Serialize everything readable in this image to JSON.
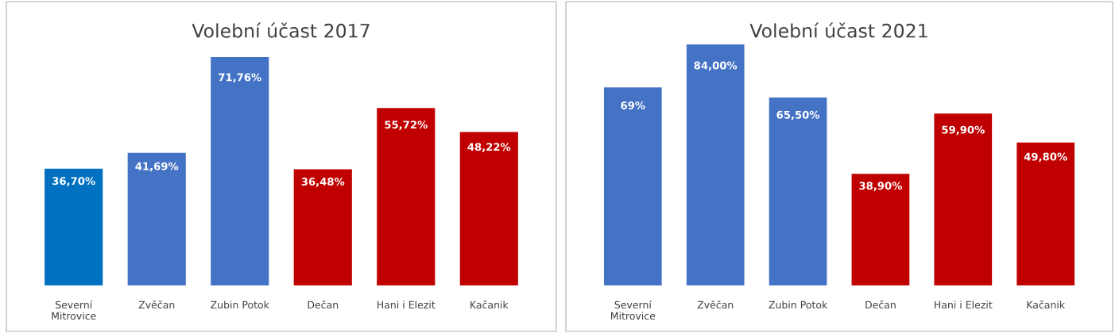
{
  "chart_data": [
    {
      "type": "bar",
      "title": "Volební účast 2017",
      "categories": [
        "Severní\nMitrovice",
        "Zvěčan",
        "Zubin Potok",
        "Dečan",
        "Hani i Elezit",
        "Kačanik"
      ],
      "values": [
        36.7,
        41.69,
        71.76,
        36.48,
        55.72,
        48.22
      ],
      "colors": [
        "#0070c0",
        "#4472c4",
        "#4472c4",
        "#c00000",
        "#c00000",
        "#c00000"
      ],
      "value_labels": [
        "36,70%",
        "41,69%",
        "71,76%",
        "36,48%",
        "55,72%",
        "48,22%"
      ],
      "grid": false,
      "legend": false
    },
    {
      "type": "bar",
      "title": "Volební účast 2021",
      "categories": [
        "Severní\nMitrovice",
        "Zvěčan",
        "Zubin Potok",
        "Dečan",
        "Hani i Elezit",
        "Kačanik"
      ],
      "values": [
        69,
        84.0,
        65.5,
        38.9,
        59.9,
        49.8
      ],
      "colors": [
        "#4472c4",
        "#4472c4",
        "#4472c4",
        "#c00000",
        "#c00000",
        "#c00000"
      ],
      "value_labels": [
        "69%",
        "84,00%",
        "65,50%",
        "38,90%",
        "59,90%",
        "49,80%"
      ],
      "grid": false,
      "legend": false
    }
  ]
}
